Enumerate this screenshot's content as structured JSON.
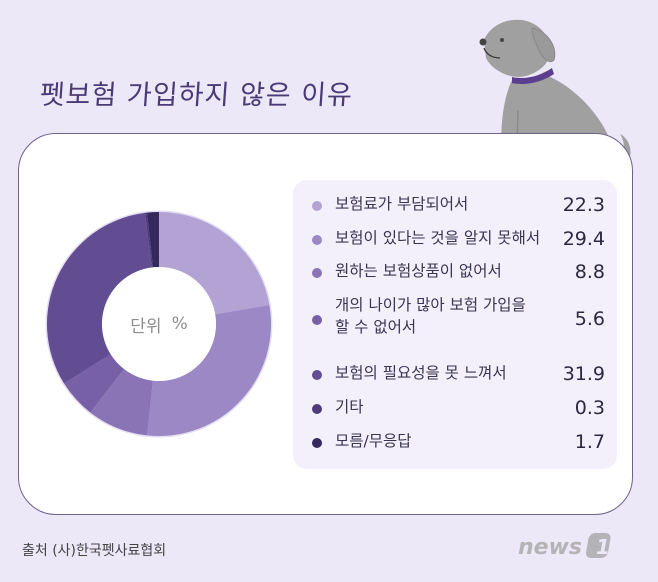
{
  "title": "펫보험 가입하지 않은 이유",
  "center_label": {
    "unit_label": "단위",
    "unit_symbol": "%"
  },
  "source": "출처 (사)한국펫사료협회",
  "logo": "news1",
  "colors": {
    "background": "#ece8f8",
    "card_border": "#6e6388",
    "legend_bg": "#f3f0fb",
    "dog_body": "#a0a0a0",
    "dog_collar": "#5b3f8e"
  },
  "legend": [
    {
      "label": "보험료가 부담되어서",
      "value": "22.3",
      "color": "#b3a2d4"
    },
    {
      "label": "보험이 있다는 것을 알지 못해서",
      "value": "29.4",
      "color": "#9b88c4"
    },
    {
      "label": "원하는 보험상품이 없어서",
      "value": "8.8",
      "color": "#8a74b5"
    },
    {
      "label": "개의 나이가 많아 보험 가입을",
      "label2": "할 수 없어서",
      "value": "5.6",
      "color": "#7760a6"
    },
    {
      "label": "보험의 필요성을 못 느껴서",
      "value": "31.9",
      "color": "#624c92"
    },
    {
      "label": "기타",
      "value": "0.3",
      "color": "#4e3b7c"
    },
    {
      "label": "모름/무응답",
      "value": "1.7",
      "color": "#34285c"
    }
  ],
  "chart_data": {
    "type": "pie",
    "subtype": "donut",
    "title": "펫보험 가입하지 않은 이유",
    "unit": "%",
    "categories": [
      "보험료가 부담되어서",
      "보험이 있다는 것을 알지 못해서",
      "원하는 보험상품이 없어서",
      "개의 나이가 많아 보험 가입을 할 수 없어서",
      "보험의 필요성을 못 느껴서",
      "기타",
      "모름/무응답"
    ],
    "values": [
      22.3,
      29.4,
      8.8,
      5.6,
      31.9,
      0.3,
      1.7
    ],
    "colors": [
      "#b3a2d4",
      "#9b88c4",
      "#8a74b5",
      "#7760a6",
      "#624c92",
      "#4e3b7c",
      "#34285c"
    ],
    "start_angle": "12 o'clock",
    "direction": "clockwise",
    "legend_position": "right",
    "source": "(사)한국펫사료협회"
  }
}
